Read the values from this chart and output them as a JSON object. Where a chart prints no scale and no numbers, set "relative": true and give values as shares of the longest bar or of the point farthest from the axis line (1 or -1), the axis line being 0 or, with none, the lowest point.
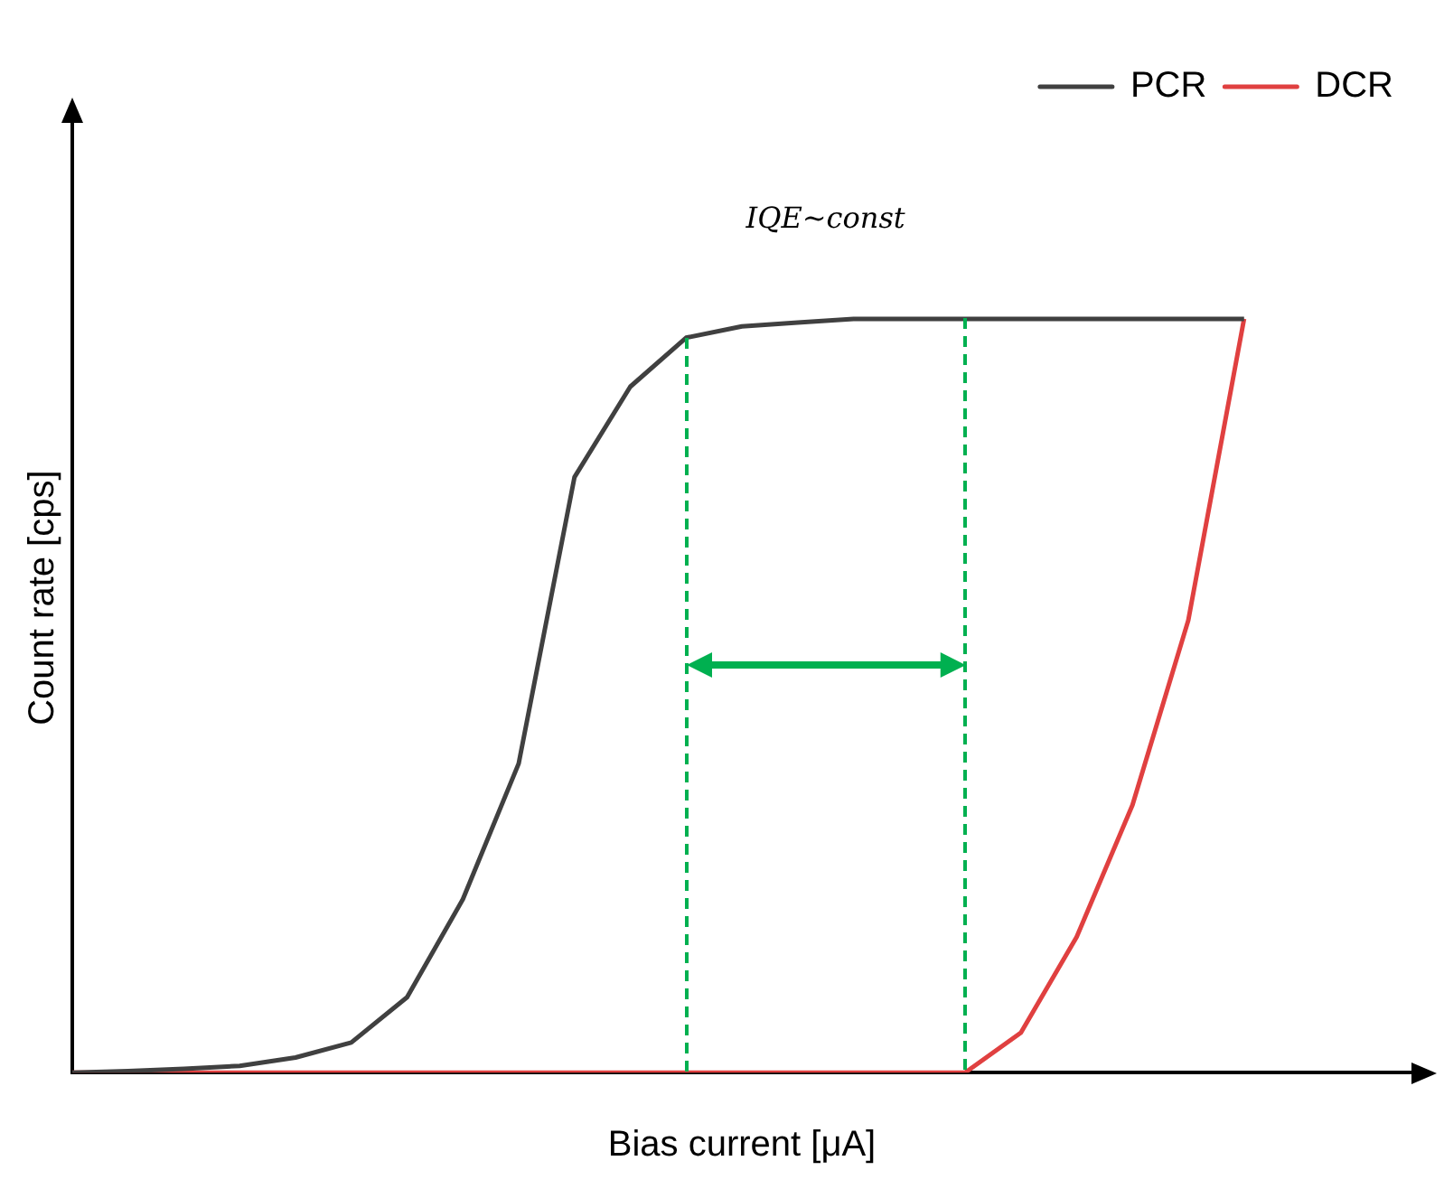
{
  "chart_data": {
    "type": "line",
    "relative": true,
    "xlabel": "Bias current [μA]",
    "ylabel": "Count rate [cps]",
    "categories": [
      null,
      null,
      null,
      null,
      null,
      null,
      null,
      null,
      null,
      null,
      null,
      null,
      null,
      null,
      null,
      null,
      null,
      null,
      null,
      null,
      null,
      null,
      null,
      null,
      null
    ],
    "series": [
      {
        "name": "PCR",
        "color": "#404040",
        "values": [
          0,
          0.002,
          0.005,
          0.009,
          0.02,
          0.04,
          0.1,
          0.23,
          0.41,
          0.79,
          0.91,
          0.975,
          0.99,
          0.995,
          1,
          1,
          1,
          1,
          1,
          1,
          1,
          1,
          null,
          null,
          null
        ]
      },
      {
        "name": "DCR",
        "color": "#e04040",
        "values": [
          0,
          0,
          0,
          0,
          0,
          0,
          0,
          0,
          0,
          0,
          0,
          0,
          0,
          0,
          0,
          0,
          0,
          0.053,
          0.18,
          0.355,
          0.6,
          1,
          null,
          null,
          null
        ]
      }
    ],
    "annotations": [
      "IQE~const"
    ],
    "legend": "top right",
    "grid": false,
    "tick_labels": false,
    "marker": "none",
    "line_style": "solid"
  }
}
